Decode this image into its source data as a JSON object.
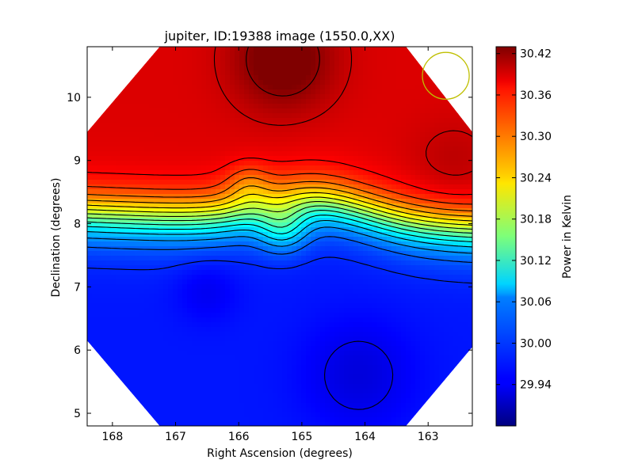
{
  "chart_data": {
    "type": "heatmap",
    "title": "jupiter, ID:19388 image (1550.0,XX)",
    "xlabel": "Right Ascension (degrees)",
    "ylabel": "Declination (degrees)",
    "xlim": [
      168.4,
      162.3
    ],
    "ylim": [
      4.8,
      10.8
    ],
    "x_ticks": [
      168,
      167,
      166,
      165,
      164,
      163
    ],
    "x_tick_labels": [
      "168",
      "167",
      "166",
      "165",
      "164",
      "163"
    ],
    "y_ticks": [
      5,
      6,
      7,
      8,
      9,
      10
    ],
    "y_tick_labels": [
      "5",
      "6",
      "7",
      "8",
      "9",
      "10"
    ],
    "colorbar": {
      "label": "Power in Kelvin",
      "range": [
        29.88,
        30.43
      ],
      "colormap": "jet",
      "ticks": [
        29.94,
        30.0,
        30.06,
        30.12,
        30.18,
        30.24,
        30.3,
        30.36,
        30.42
      ],
      "tick_labels": [
        "29.94",
        "30.00",
        "30.06",
        "30.12",
        "30.18",
        "30.24",
        "30.30",
        "30.36",
        "30.42"
      ]
    },
    "footprint": "octagon",
    "footprint_vertices": [
      [
        167.25,
        10.8
      ],
      [
        163.35,
        10.8
      ],
      [
        162.3,
        9.45
      ],
      [
        162.3,
        6.05
      ],
      [
        163.35,
        4.8
      ],
      [
        167.25,
        4.8
      ],
      [
        168.4,
        6.15
      ],
      [
        168.4,
        9.45
      ]
    ],
    "beam_circle": {
      "ra": 162.72,
      "dec": 10.34,
      "radius_deg": 0.37,
      "color": "#bfbf00"
    },
    "contour_color": "#000000",
    "contour_interval": 0.03,
    "field_components": [
      {
        "kind": "band",
        "dec_center": 8.0,
        "width_deg": 0.45,
        "low": 29.96,
        "high": 30.38,
        "curve_amp": 0.35,
        "curve_center_ra": 164.8,
        "curve_width": 1.2,
        "tilt": 0.04
      },
      {
        "kind": "bump",
        "ra": 165.3,
        "dec": 7.95,
        "sigma": 0.28,
        "amplitude": 0.09
      },
      {
        "kind": "bump",
        "ra": 165.85,
        "dec": 8.6,
        "sigma": 0.25,
        "amplitude": -0.05
      },
      {
        "kind": "bump",
        "ra": 165.3,
        "dec": 10.6,
        "sigma": 0.55,
        "amplitude": 0.07
      },
      {
        "kind": "bump",
        "ra": 166.5,
        "dec": 6.95,
        "sigma": 0.35,
        "amplitude": -0.02
      },
      {
        "kind": "bump",
        "ra": 164.1,
        "dec": 5.6,
        "sigma": 0.6,
        "amplitude": -0.03
      },
      {
        "kind": "bump",
        "ra": 162.6,
        "dec": 8.9,
        "sigma": 0.5,
        "amplitude": 0.02
      }
    ]
  }
}
